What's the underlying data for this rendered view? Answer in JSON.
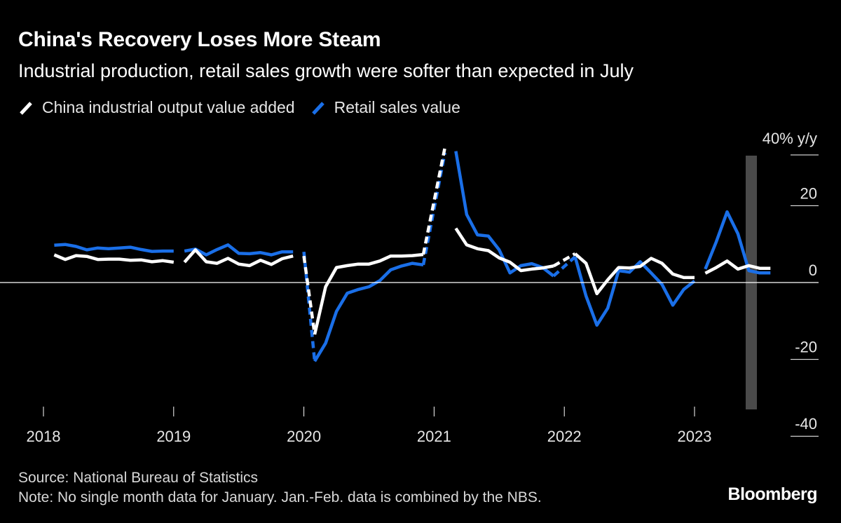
{
  "title": "China's Recovery Loses More Steam",
  "subtitle": "Industrial production, retail sales growth were softer than expected in July",
  "legend": [
    {
      "label": "China industrial output value added",
      "color": "#ffffff"
    },
    {
      "label": "Retail sales value",
      "color": "#1a6fe8"
    }
  ],
  "footer": {
    "source": "Source: National Bureau of Statistics",
    "note": "Note: No single month data for January. Jan.-Feb. data is combined by the NBS.",
    "brand": "Bloomberg"
  },
  "chart_data": {
    "type": "line",
    "title": "China's Recovery Loses More Steam",
    "subtitle": "Industrial production, retail sales growth were softer than expected in July",
    "xlabel": "",
    "ylabel": "40% y/y",
    "ylim": [
      -40,
      40
    ],
    "xlim": [
      2018.0,
      2023.6
    ],
    "yticks": [
      {
        "value": 20,
        "label": "20"
      },
      {
        "value": 0,
        "label": "0"
      },
      {
        "value": -20,
        "label": "-20"
      },
      {
        "value": -40,
        "label": "-40"
      }
    ],
    "top_label": "40% y/y",
    "xticks": [
      {
        "value": 2018,
        "label": "2018"
      },
      {
        "value": 2019,
        "label": "2019"
      },
      {
        "value": 2020,
        "label": "2020"
      },
      {
        "value": 2021,
        "label": "2021"
      },
      {
        "value": 2022,
        "label": "2022"
      },
      {
        "value": 2023,
        "label": "2023"
      }
    ],
    "zero_line": 0,
    "highlight_band": {
      "x_start": 2023.5,
      "x_end": 2023.58
    },
    "series": [
      {
        "name": "Retail sales value",
        "color": "#1a6fe8",
        "segments": [
          {
            "x": [
              2018.083,
              2018.167,
              2018.25,
              2018.333,
              2018.417,
              2018.5,
              2018.583,
              2018.667,
              2018.75,
              2018.833,
              2018.917,
              2019.0
            ],
            "y": [
              9.7,
              9.9,
              9.4,
              8.5,
              9.0,
              8.8,
              9.0,
              9.2,
              8.6,
              8.1,
              8.2,
              8.2
            ]
          },
          {
            "x": [
              2019.083,
              2019.167,
              2019.25,
              2019.333,
              2019.417,
              2019.5,
              2019.583,
              2019.667,
              2019.75,
              2019.833,
              2019.917
            ],
            "y": [
              8.2,
              8.7,
              7.2,
              8.6,
              9.8,
              7.6,
              7.5,
              7.8,
              7.2,
              8.0,
              8.0
            ]
          },
          {
            "x": [
              2020.083,
              2020.167,
              2020.25,
              2020.333,
              2020.417,
              2020.5,
              2020.583,
              2020.667,
              2020.75,
              2020.833,
              2020.917
            ],
            "y": [
              -20.5,
              -15.8,
              -7.5,
              -2.8,
              -1.8,
              -1.1,
              0.5,
              3.3,
              4.3,
              5.0,
              4.6
            ]
          },
          {
            "x": [
              2021.167,
              2021.25,
              2021.333,
              2021.417,
              2021.5,
              2021.583,
              2021.667,
              2021.75,
              2021.833,
              2021.917
            ],
            "y": [
              34.2,
              17.7,
              12.4,
              12.1,
              8.5,
              2.5,
              4.4,
              4.9,
              3.9,
              1.7
            ]
          },
          {
            "x": [
              2022.083,
              2022.167,
              2022.25,
              2022.333,
              2022.417,
              2022.5,
              2022.583,
              2022.667,
              2022.75,
              2022.833,
              2022.917,
              2023.0
            ],
            "y": [
              6.7,
              -3.5,
              -11.1,
              -6.7,
              3.1,
              2.7,
              5.4,
              2.5,
              -0.5,
              -5.9,
              -1.8,
              0.4
            ]
          },
          {
            "x": [
              2023.083,
              2023.167,
              2023.25,
              2023.333,
              2023.417,
              2023.5,
              2023.583
            ],
            "y": [
              3.5,
              10.6,
              18.4,
              12.7,
              3.1,
              2.5,
              2.5
            ]
          }
        ],
        "bridges": [
          {
            "x": [
              2020.0,
              2020.083
            ],
            "y": [
              8.0,
              -20.5
            ]
          },
          {
            "x": [
              2020.917,
              2021.083
            ],
            "y": [
              4.6,
              33.8
            ]
          },
          {
            "x": [
              2021.917,
              2022.083
            ],
            "y": [
              1.7,
              6.7
            ]
          }
        ]
      },
      {
        "name": "China industrial output value added",
        "color": "#ffffff",
        "segments": [
          {
            "x": [
              2018.083,
              2018.167,
              2018.25,
              2018.333,
              2018.417,
              2018.5,
              2018.583,
              2018.667,
              2018.75,
              2018.833,
              2018.917,
              2019.0
            ],
            "y": [
              7.2,
              6.0,
              7.0,
              6.8,
              6.0,
              6.1,
              6.1,
              5.8,
              5.9,
              5.4,
              5.7,
              5.3
            ]
          },
          {
            "x": [
              2019.083,
              2019.167,
              2019.25,
              2019.333,
              2019.417,
              2019.5,
              2019.583,
              2019.667,
              2019.75,
              2019.833,
              2019.917
            ],
            "y": [
              5.3,
              8.5,
              5.4,
              5.0,
              6.3,
              4.8,
              4.4,
              5.8,
              4.7,
              6.2,
              6.9
            ]
          },
          {
            "x": [
              2020.083,
              2020.167,
              2020.25,
              2020.333,
              2020.417,
              2020.5,
              2020.583,
              2020.667,
              2020.75,
              2020.833,
              2020.917
            ],
            "y": [
              -13.5,
              -1.1,
              3.9,
              4.4,
              4.8,
              4.8,
              5.6,
              6.9,
              6.9,
              7.0,
              7.3
            ]
          },
          {
            "x": [
              2021.167,
              2021.25,
              2021.333,
              2021.417,
              2021.5,
              2021.583,
              2021.667,
              2021.75,
              2021.833,
              2021.917
            ],
            "y": [
              14.1,
              9.8,
              8.8,
              8.3,
              6.4,
              5.3,
              3.1,
              3.5,
              3.8,
              4.3
            ]
          },
          {
            "x": [
              2022.083,
              2022.167,
              2022.25,
              2022.333,
              2022.417,
              2022.5,
              2022.583,
              2022.667,
              2022.75,
              2022.833,
              2022.917,
              2023.0
            ],
            "y": [
              7.5,
              5.0,
              -2.9,
              0.7,
              3.9,
              3.8,
              4.2,
              6.3,
              5.0,
              2.2,
              1.3,
              1.3
            ]
          },
          {
            "x": [
              2023.083,
              2023.167,
              2023.25,
              2023.333,
              2023.417,
              2023.5,
              2023.583
            ],
            "y": [
              2.4,
              3.9,
              5.6,
              3.5,
              4.4,
              3.7,
              3.7
            ]
          }
        ],
        "bridges": [
          {
            "x": [
              2020.0,
              2020.083
            ],
            "y": [
              6.9,
              -13.5
            ]
          },
          {
            "x": [
              2020.917,
              2021.083
            ],
            "y": [
              7.3,
              35.1
            ]
          },
          {
            "x": [
              2021.917,
              2022.083
            ],
            "y": [
              4.3,
              7.5
            ]
          }
        ]
      }
    ]
  }
}
